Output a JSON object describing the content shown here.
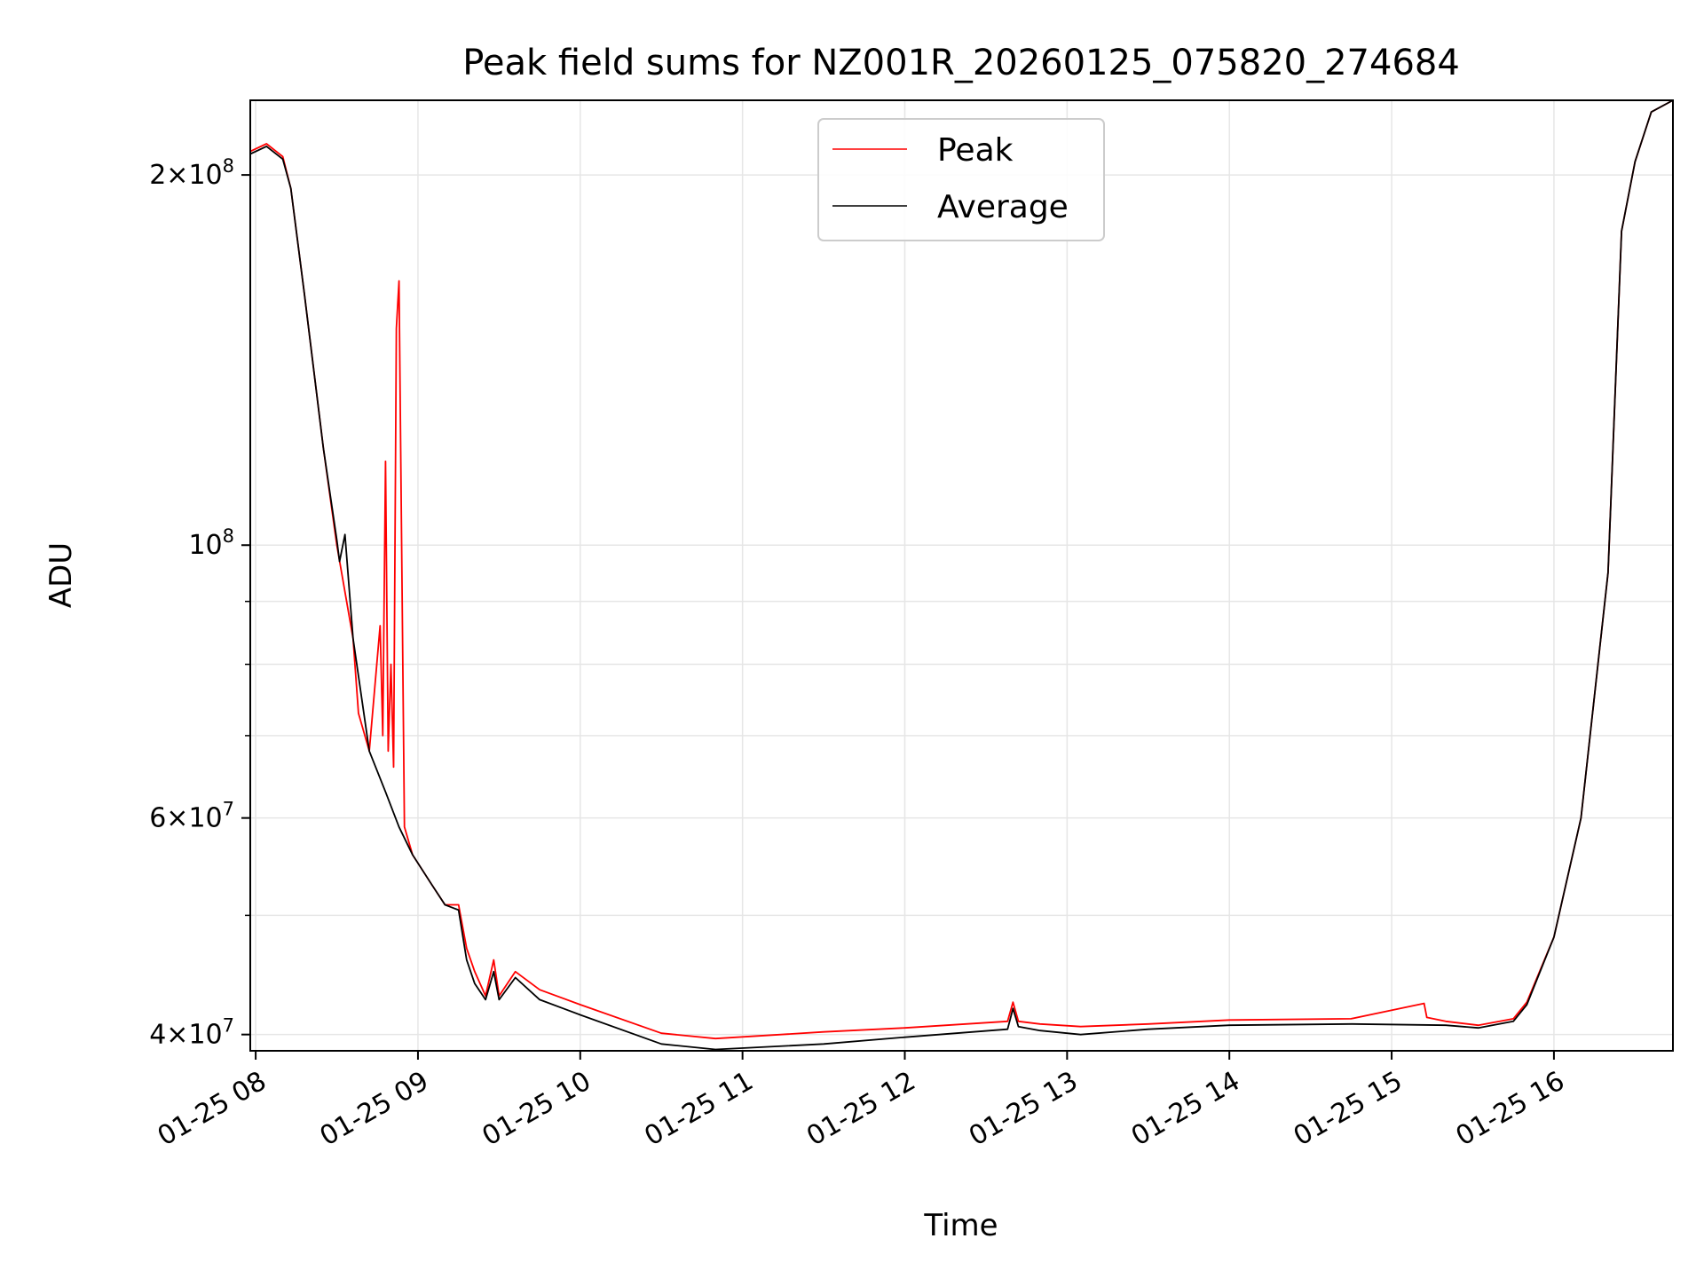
{
  "chart_data": {
    "type": "line",
    "title": "Peak field sums for NZ001R_20260125_075820_274684",
    "xlabel": "Time",
    "ylabel": "ADU",
    "yscale": "log",
    "grid": true,
    "legend_position": "top-center",
    "xlim": [
      "01-25 07:58",
      "01-25 16:44"
    ],
    "ylim": [
      38800000,
      230000000
    ],
    "x_ticks": [
      "01-25 08",
      "01-25 09",
      "01-25 10",
      "01-25 11",
      "01-25 12",
      "01-25 13",
      "01-25 14",
      "01-25 15",
      "01-25 16"
    ],
    "y_ticks": [
      {
        "value": 200000000,
        "mantissa": "2",
        "exponent": "8"
      },
      {
        "value": 100000000,
        "mantissa": "",
        "exponent": "8"
      },
      {
        "value": 60000000,
        "mantissa": "6",
        "exponent": "7"
      },
      {
        "value": 40000000,
        "mantissa": "4",
        "exponent": "7"
      }
    ],
    "y_minor_ticks": [
      90000000,
      80000000,
      70000000,
      50000000
    ],
    "series": [
      {
        "name": "Peak",
        "color": "#ff0000",
        "x": [
          "01-25 07:58",
          "01-25 08:04",
          "01-25 08:10",
          "01-25 08:13",
          "01-25 08:18",
          "01-25 08:25",
          "01-25 08:30",
          "01-25 08:36",
          "01-25 08:38",
          "01-25 08:42",
          "01-25 08:46",
          "01-25 08:47",
          "01-25 08:48",
          "01-25 08:49",
          "01-25 08:50",
          "01-25 08:51",
          "01-25 08:52",
          "01-25 08:53",
          "01-25 08:55",
          "01-25 08:58",
          "01-25 09:05",
          "01-25 09:10",
          "01-25 09:15",
          "01-25 09:18",
          "01-25 09:21",
          "01-25 09:25",
          "01-25 09:28",
          "01-25 09:30",
          "01-25 09:36",
          "01-25 09:45",
          "01-25 10:00",
          "01-25 10:30",
          "01-25 10:50",
          "01-25 11:30",
          "01-25 12:00",
          "01-25 12:38",
          "01-25 12:40",
          "01-25 12:42",
          "01-25 12:50",
          "01-25 13:05",
          "01-25 13:30",
          "01-25 14:00",
          "01-25 14:45",
          "01-25 15:12",
          "01-25 15:13",
          "01-25 15:20",
          "01-25 15:32",
          "01-25 15:45",
          "01-25 15:50",
          "01-25 16:00",
          "01-25 16:10",
          "01-25 16:20",
          "01-25 16:25",
          "01-25 16:30",
          "01-25 16:36",
          "01-25 16:44"
        ],
        "values": [
          209000000,
          212000000,
          207000000,
          195000000,
          160000000,
          120000000,
          100000000,
          84000000,
          73000000,
          68000000,
          86000000,
          70000000,
          117000000,
          68000000,
          80000000,
          66000000,
          150000000,
          164000000,
          59000000,
          56000000,
          53000000,
          51000000,
          51000000,
          47000000,
          45000000,
          43000000,
          46000000,
          43000000,
          45000000,
          43500000,
          42300000,
          40100000,
          39700000,
          40200000,
          40500000,
          41000000,
          42500000,
          41000000,
          40800000,
          40600000,
          40800000,
          41100000,
          41200000,
          42400000,
          41300000,
          41000000,
          40700000,
          41200000,
          42500000,
          48000000,
          60000000,
          95000000,
          180000000,
          205000000,
          225000000,
          230000000
        ]
      },
      {
        "name": "Average",
        "color": "#000000",
        "x": [
          "01-25 07:58",
          "01-25 08:04",
          "01-25 08:10",
          "01-25 08:13",
          "01-25 08:18",
          "01-25 08:25",
          "01-25 08:30",
          "01-25 08:31",
          "01-25 08:33",
          "01-25 08:36",
          "01-25 08:42",
          "01-25 08:48",
          "01-25 08:53",
          "01-25 08:58",
          "01-25 09:05",
          "01-25 09:10",
          "01-25 09:15",
          "01-25 09:18",
          "01-25 09:21",
          "01-25 09:25",
          "01-25 09:28",
          "01-25 09:30",
          "01-25 09:36",
          "01-25 09:45",
          "01-25 10:00",
          "01-25 10:30",
          "01-25 10:50",
          "01-25 11:30",
          "01-25 12:00",
          "01-25 12:38",
          "01-25 12:40",
          "01-25 12:42",
          "01-25 12:50",
          "01-25 13:05",
          "01-25 13:30",
          "01-25 14:00",
          "01-25 14:45",
          "01-25 15:20",
          "01-25 15:32",
          "01-25 15:45",
          "01-25 15:50",
          "01-25 16:00",
          "01-25 16:10",
          "01-25 16:20",
          "01-25 16:25",
          "01-25 16:30",
          "01-25 16:36",
          "01-25 16:44"
        ],
        "values": [
          208000000,
          211000000,
          206000000,
          195000000,
          160000000,
          120000000,
          101000000,
          97000000,
          102000000,
          84000000,
          68000000,
          63000000,
          59000000,
          56000000,
          53000000,
          51000000,
          50500000,
          46000000,
          44000000,
          42700000,
          45000000,
          42700000,
          44500000,
          42700000,
          41500000,
          39300000,
          38900000,
          39300000,
          39800000,
          40400000,
          42000000,
          40600000,
          40300000,
          40000000,
          40400000,
          40700000,
          40800000,
          40700000,
          40500000,
          41000000,
          42300000,
          48000000,
          60000000,
          95000000,
          180000000,
          205000000,
          225000000,
          230000000
        ]
      }
    ]
  }
}
